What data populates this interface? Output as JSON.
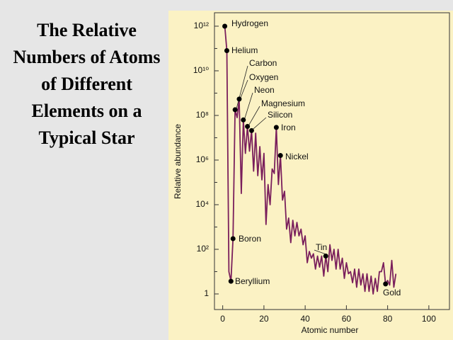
{
  "chart_data": {
    "type": "line",
    "title": "The Relative Numbers of Atoms of Different Elements on a Typical Star",
    "xlabel": "Atomic number",
    "ylabel": "Relative abundance",
    "log_y": true,
    "color": "#7a1f5c",
    "xlim": [
      -4,
      110
    ],
    "xticks": [
      0,
      20,
      40,
      60,
      80,
      100
    ],
    "ylim": [
      0.2,
      4000000000000.0
    ],
    "yticks": [
      1,
      {
        "value": 100,
        "label": "10²"
      },
      {
        "value": 10000,
        "label": "10⁴"
      },
      {
        "value": 1000000,
        "label": "10⁶"
      },
      {
        "value": 100000000,
        "label": "10⁸"
      },
      {
        "value": 10000000000,
        "label": "10¹⁰"
      },
      {
        "value": 1000000000000,
        "label": "10¹²"
      }
    ],
    "x": [
      1,
      2,
      3,
      4,
      5,
      6,
      7,
      8,
      9,
      10,
      11,
      12,
      13,
      14,
      15,
      16,
      17,
      18,
      19,
      20,
      21,
      22,
      23,
      24,
      25,
      26,
      27,
      28,
      29,
      30,
      31,
      32,
      33,
      34,
      35,
      36,
      37,
      38,
      39,
      40,
      41,
      42,
      43,
      44,
      45,
      46,
      47,
      48,
      49,
      50,
      51,
      52,
      53,
      54,
      55,
      56,
      57,
      58,
      59,
      60,
      61,
      62,
      63,
      64,
      65,
      66,
      67,
      68,
      69,
      70,
      71,
      72,
      73,
      74,
      75,
      76,
      77,
      78,
      79,
      80,
      81,
      82,
      83,
      84
    ],
    "values": [
      1000000000000.0,
      80000000000.0,
      10,
      3.7,
      300,
      180000000.0,
      80000000.0,
      540000000.0,
      32000.0,
      63000000.0,
      2000000.0,
      32000000.0,
      2500000.0,
      21000000.0,
      320000.0,
      16000000.0,
      200000.0,
      4000000.0,
      130000.0,
      2000000.0,
      1300,
      80000.0,
      10000.0,
      400000.0,
      250000.0,
      29000000.0,
      80000.0,
      1600000.0,
      16000.0,
      40000.0,
      800,
      2500,
      200,
      2000,
      400,
      1600,
      400,
      800,
      160,
      400,
      25,
      80,
      40,
      63,
      13,
      50,
      16,
      50,
      6.3,
      50,
      10,
      160,
      32,
      100,
      13,
      100,
      13,
      40,
      5,
      25,
      8,
      10,
      3.2,
      13,
      2,
      13,
      2.5,
      8,
      1.3,
      8,
      1.3,
      6.3,
      1,
      5,
      1.3,
      10,
      10,
      25,
      2.8,
      4,
      2.5,
      32,
      2,
      8
    ],
    "points": [
      {
        "label": "Hydrogen",
        "x": 1,
        "y": 1000000000000.0
      },
      {
        "label": "Helium",
        "x": 2,
        "y": 80000000000.0
      },
      {
        "label": "Carbon",
        "x": 6,
        "y": 180000000.0
      },
      {
        "label": "Oxygen",
        "x": 8,
        "y": 540000000.0
      },
      {
        "label": "Neon",
        "x": 10,
        "y": 63000000.0
      },
      {
        "label": "Magnesium",
        "x": 12,
        "y": 32000000.0
      },
      {
        "label": "Silicon",
        "x": 14,
        "y": 21000000.0
      },
      {
        "label": "Iron",
        "x": 26,
        "y": 29000000.0
      },
      {
        "label": "Nickel",
        "x": 28,
        "y": 1600000.0
      },
      {
        "label": "Boron",
        "x": 5,
        "y": 300
      },
      {
        "label": "Tin",
        "x": 50,
        "y": 50
      },
      {
        "label": "Beryllium",
        "x": 4,
        "y": 3.7
      },
      {
        "label": "Gold",
        "x": 79,
        "y": 2.8
      }
    ]
  }
}
